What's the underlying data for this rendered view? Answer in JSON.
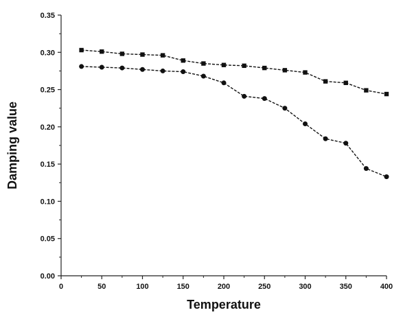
{
  "chart_data": {
    "type": "line",
    "title": "",
    "xlabel": "Temperature",
    "ylabel": "Damping value",
    "xlim": [
      0,
      400
    ],
    "ylim": [
      0.0,
      0.35
    ],
    "x_ticks": [
      "0",
      "50",
      "100",
      "150",
      "200",
      "250",
      "300",
      "350",
      "400"
    ],
    "y_ticks": [
      "0.00",
      "0.05",
      "0.10",
      "0.15",
      "0.20",
      "0.25",
      "0.30",
      "0.35"
    ],
    "grid": false,
    "legend": "none",
    "colors": {
      "axis": "#222222",
      "series": "#111111",
      "text": "#111111"
    },
    "x": [
      25,
      50,
      75,
      100,
      125,
      150,
      175,
      200,
      225,
      250,
      275,
      300,
      325,
      350,
      375,
      400
    ],
    "series": [
      {
        "marker": "square",
        "values": [
          0.303,
          0.301,
          0.298,
          0.297,
          0.296,
          0.289,
          0.285,
          0.283,
          0.282,
          0.279,
          0.276,
          0.273,
          0.261,
          0.259,
          0.249,
          0.244
        ]
      },
      {
        "marker": "circle",
        "values": [
          0.281,
          0.28,
          0.279,
          0.277,
          0.275,
          0.274,
          0.268,
          0.259,
          0.241,
          0.238,
          0.225,
          0.204,
          0.184,
          0.178,
          0.144,
          0.133
        ]
      }
    ]
  }
}
